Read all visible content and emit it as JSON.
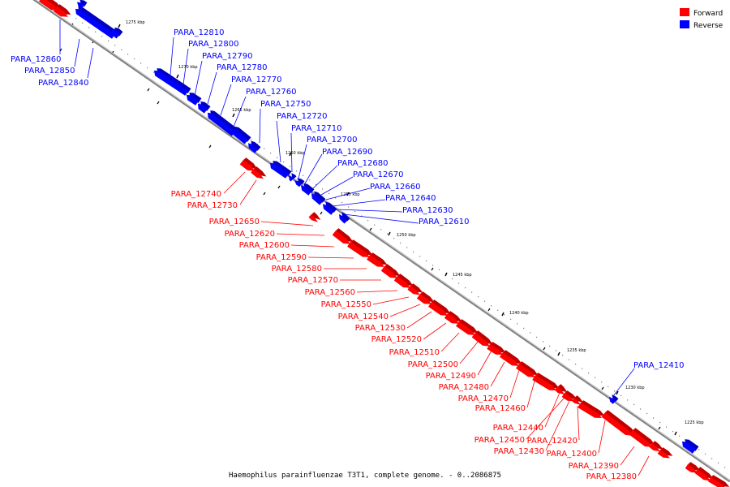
{
  "title": "Haemophilus parainfluenzae T3T1, complete genome. - 0..2086875",
  "legend": [
    {
      "label": "Forward",
      "color": "#ff0000"
    },
    {
      "label": "Reverse",
      "color": "#0000ff"
    }
  ],
  "colors": {
    "forward": "#ff0000",
    "reverse": "#0000ff",
    "backbone": "#808080"
  },
  "scale_ticks": [
    "1275 kbp",
    "1270 kbp",
    "1265 kbp",
    "1260 kbp",
    "1255 kbp",
    "1250 kbp",
    "1245 kbp",
    "1240 kbp",
    "1235 kbp",
    "1230 kbp",
    "1225 kbp"
  ],
  "genes": [
    {
      "id": "PARA_12860",
      "strand": "reverse"
    },
    {
      "id": "PARA_12850",
      "strand": "reverse"
    },
    {
      "id": "PARA_12840",
      "strand": "reverse"
    },
    {
      "id": "PARA_12810",
      "strand": "reverse"
    },
    {
      "id": "PARA_12800",
      "strand": "reverse"
    },
    {
      "id": "PARA_12790",
      "strand": "reverse"
    },
    {
      "id": "PARA_12780",
      "strand": "reverse"
    },
    {
      "id": "PARA_12770",
      "strand": "reverse"
    },
    {
      "id": "PARA_12760",
      "strand": "reverse"
    },
    {
      "id": "PARA_12750",
      "strand": "reverse"
    },
    {
      "id": "PARA_12720",
      "strand": "reverse"
    },
    {
      "id": "PARA_12710",
      "strand": "reverse"
    },
    {
      "id": "PARA_12700",
      "strand": "reverse"
    },
    {
      "id": "PARA_12690",
      "strand": "reverse"
    },
    {
      "id": "PARA_12680",
      "strand": "reverse"
    },
    {
      "id": "PARA_12670",
      "strand": "reverse"
    },
    {
      "id": "PARA_12660",
      "strand": "reverse"
    },
    {
      "id": "PARA_12640",
      "strand": "reverse"
    },
    {
      "id": "PARA_12630",
      "strand": "reverse"
    },
    {
      "id": "PARA_12610",
      "strand": "reverse"
    },
    {
      "id": "PARA_12740",
      "strand": "forward"
    },
    {
      "id": "PARA_12730",
      "strand": "forward"
    },
    {
      "id": "PARA_12650",
      "strand": "forward"
    },
    {
      "id": "PARA_12620",
      "strand": "forward"
    },
    {
      "id": "PARA_12600",
      "strand": "forward"
    },
    {
      "id": "PARA_12590",
      "strand": "forward"
    },
    {
      "id": "PARA_12580",
      "strand": "forward"
    },
    {
      "id": "PARA_12570",
      "strand": "forward"
    },
    {
      "id": "PARA_12560",
      "strand": "forward"
    },
    {
      "id": "PARA_12550",
      "strand": "forward"
    },
    {
      "id": "PARA_12540",
      "strand": "forward"
    },
    {
      "id": "PARA_12530",
      "strand": "forward"
    },
    {
      "id": "PARA_12520",
      "strand": "forward"
    },
    {
      "id": "PARA_12510",
      "strand": "forward"
    },
    {
      "id": "PARA_12500",
      "strand": "forward"
    },
    {
      "id": "PARA_12490",
      "strand": "forward"
    },
    {
      "id": "PARA_12480",
      "strand": "forward"
    },
    {
      "id": "PARA_12470",
      "strand": "forward"
    },
    {
      "id": "PARA_12460",
      "strand": "forward"
    },
    {
      "id": "PARA_12440",
      "strand": "forward"
    },
    {
      "id": "PARA_12450",
      "strand": "forward"
    },
    {
      "id": "PARA_12420",
      "strand": "forward"
    },
    {
      "id": "PARA_12430",
      "strand": "forward"
    },
    {
      "id": "PARA_12400",
      "strand": "forward"
    },
    {
      "id": "PARA_12390",
      "strand": "forward"
    },
    {
      "id": "PARA_12380",
      "strand": "forward"
    },
    {
      "id": "PARA_12410",
      "strand": "reverse"
    }
  ]
}
